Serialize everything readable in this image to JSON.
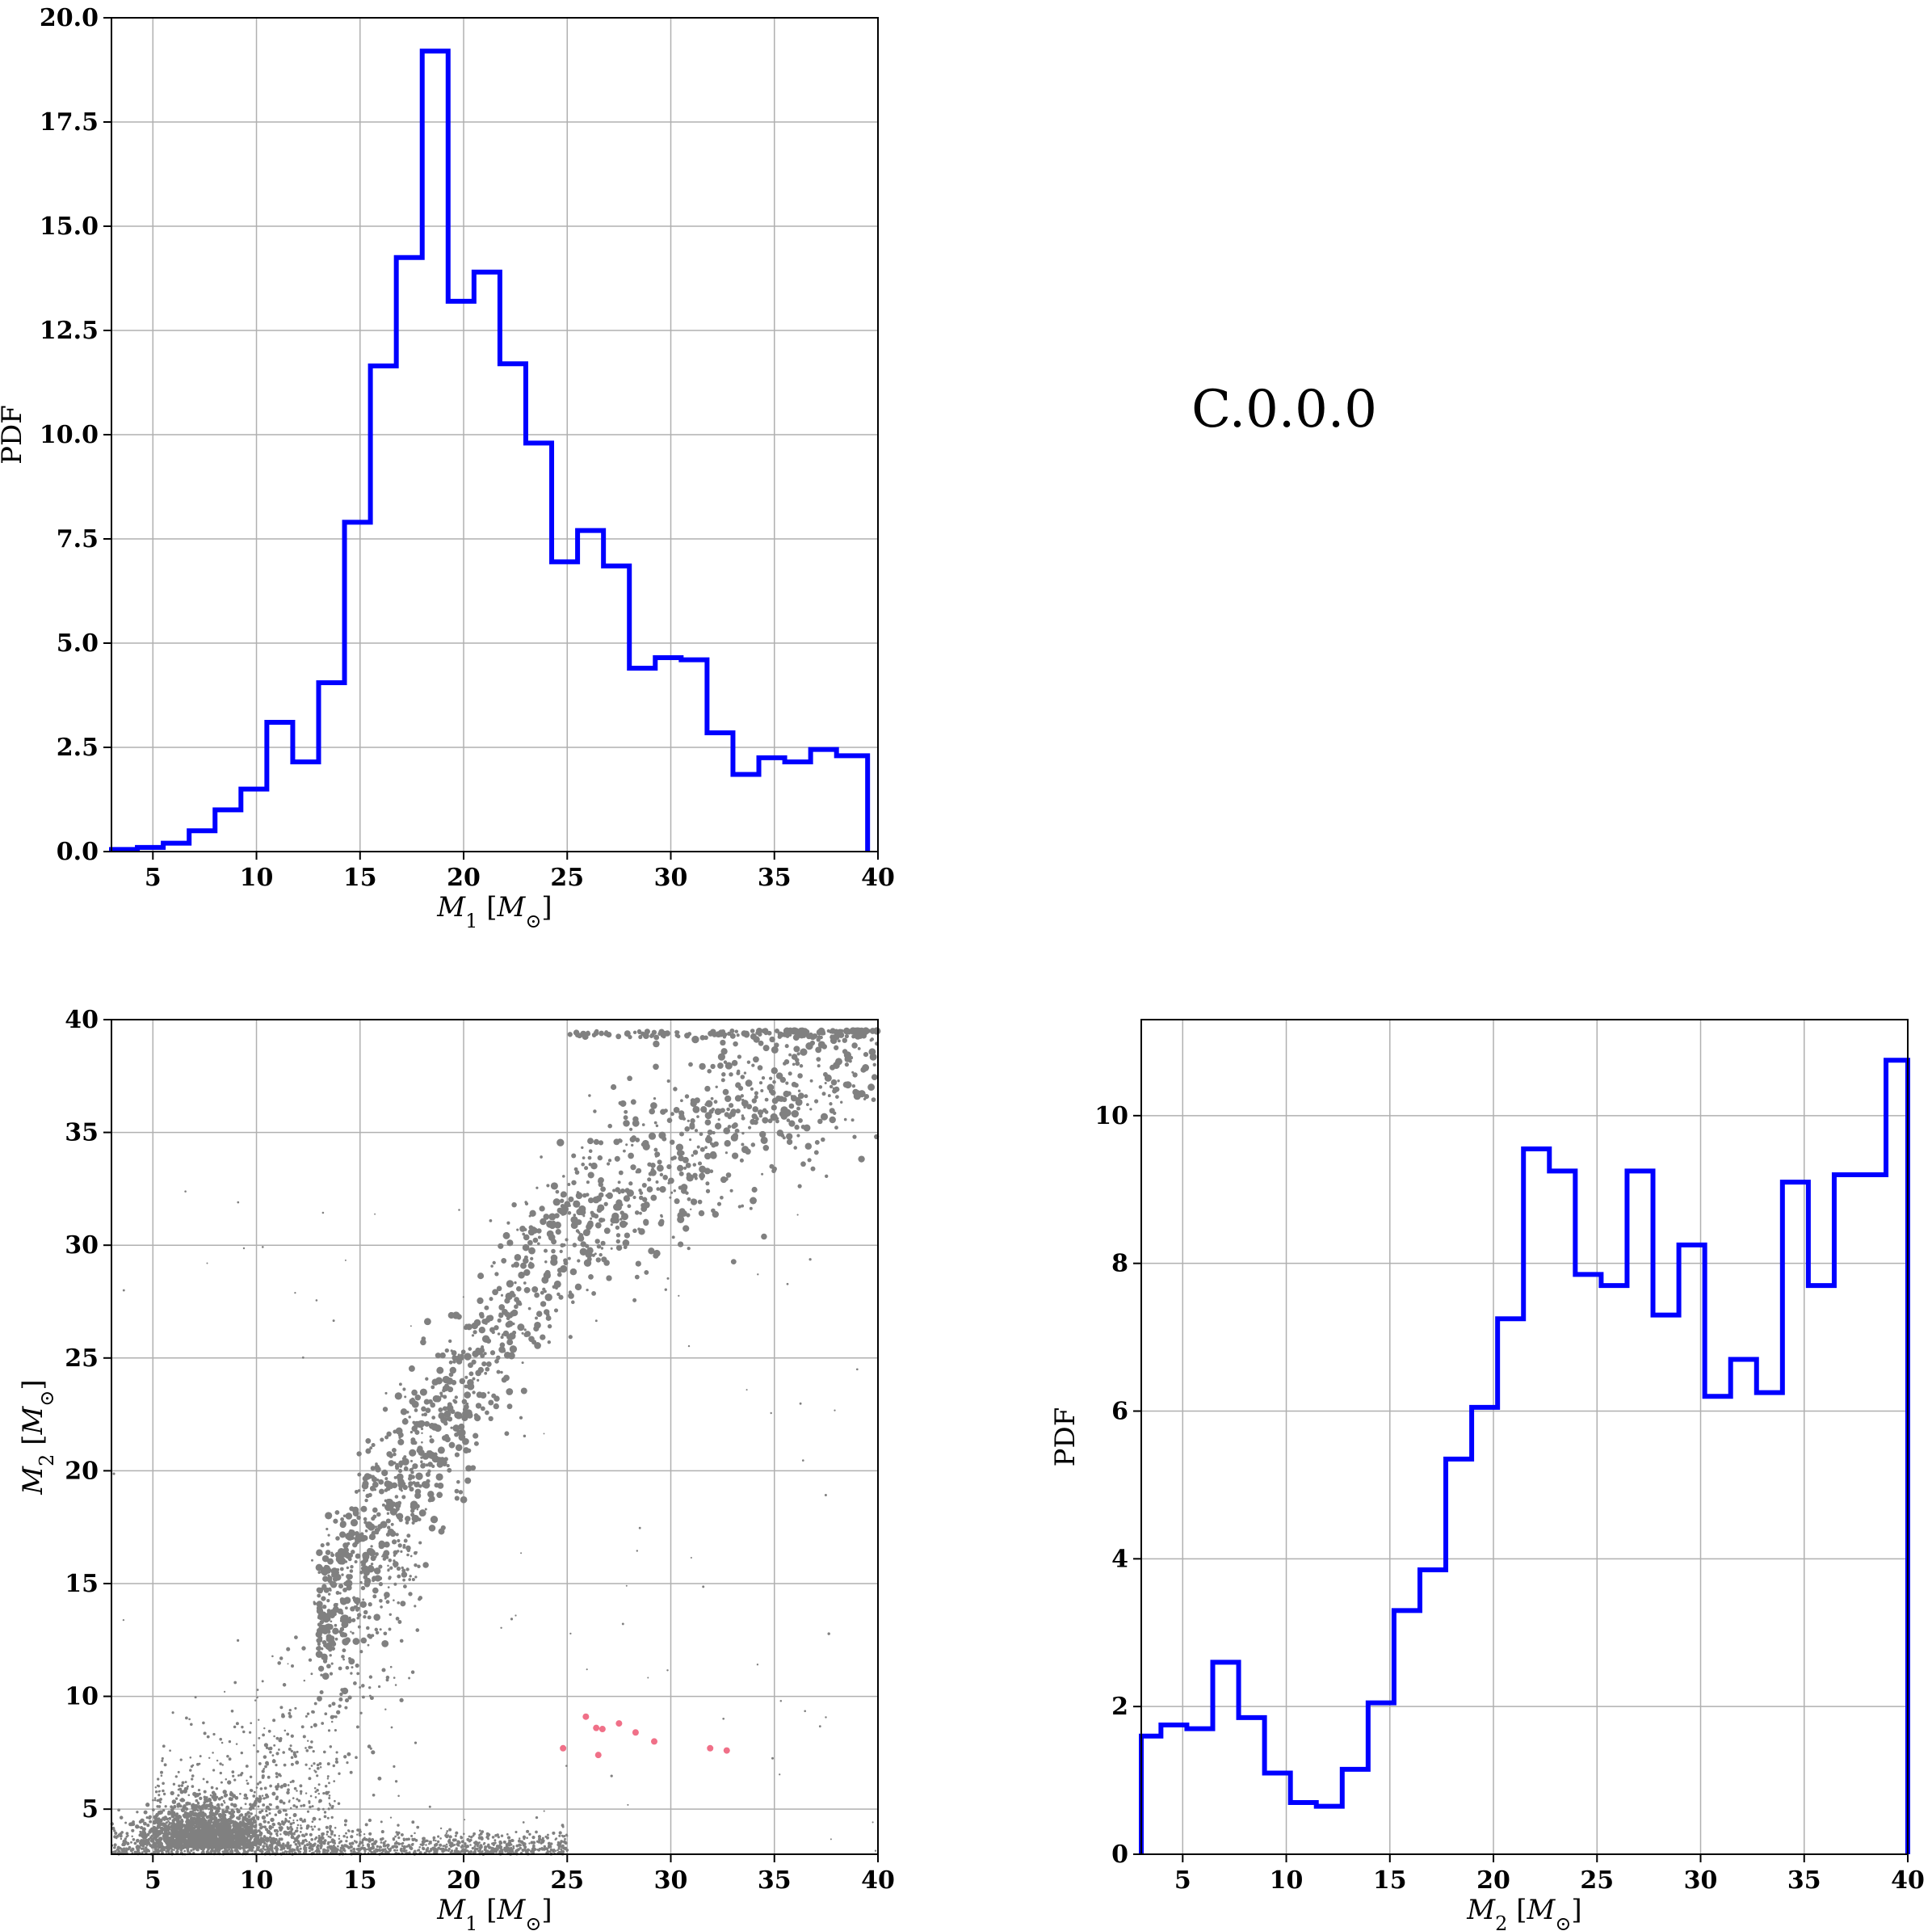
{
  "annotation": "C.0.0.0",
  "chart_data": [
    {
      "type": "histogram",
      "name": "M1 marginal",
      "xlabel": "M_1 [M_⊙]",
      "ylabel": "PDF",
      "xlim": [
        3,
        40
      ],
      "ylim": [
        0,
        20
      ],
      "xticks": [
        5,
        10,
        15,
        20,
        25,
        30,
        35,
        40
      ],
      "xtick_labels": [
        "5",
        "10",
        "15",
        "20",
        "25",
        "30",
        "35",
        "40"
      ],
      "yticks": [
        0,
        2.5,
        5,
        7.5,
        10,
        12.5,
        15,
        17.5,
        20
      ],
      "ytick_labels": [
        "0.0",
        "2.5",
        "5.0",
        "7.5",
        "10.0",
        "12.5",
        "15.0",
        "17.5",
        "20.0"
      ],
      "bin_edges": [
        3,
        4.25,
        5.5,
        6.75,
        8,
        9.25,
        10.5,
        11.75,
        13,
        14.25,
        15.5,
        16.75,
        18,
        19.25,
        20.5,
        21.75,
        23,
        24.25,
        25.5,
        26.75,
        28,
        29.25,
        30.5,
        31.75,
        33,
        34.25,
        35.5,
        36.75,
        38,
        39.5
      ],
      "values": [
        0.05,
        0.1,
        0.2,
        0.5,
        1.0,
        1.5,
        3.1,
        2.15,
        4.05,
        7.9,
        11.65,
        14.25,
        19.2,
        13.2,
        13.9,
        11.7,
        9.8,
        6.95,
        7.7,
        6.85,
        4.4,
        4.65,
        4.6,
        2.85,
        1.85,
        2.25,
        2.15,
        2.45,
        2.3
      ],
      "color": "#0000ff"
    },
    {
      "type": "scatter",
      "name": "M1 vs M2",
      "xlabel": "M_1 [M_⊙]",
      "ylabel": "M_2 [M_⊙]",
      "xlim": [
        3,
        40
      ],
      "ylim": [
        3,
        40
      ],
      "xticks": [
        5,
        10,
        15,
        20,
        25,
        30,
        35,
        40
      ],
      "xtick_labels": [
        "5",
        "10",
        "15",
        "20",
        "25",
        "30",
        "35",
        "40"
      ],
      "yticks": [
        5,
        10,
        15,
        20,
        25,
        30,
        35,
        40
      ],
      "ytick_labels": [
        "5",
        "10",
        "15",
        "20",
        "25",
        "30",
        "35",
        "40"
      ],
      "color": "#808080",
      "highlight_color": "#f07088",
      "highlight_points": [
        {
          "x": 24.8,
          "y": 7.7
        },
        {
          "x": 25.9,
          "y": 9.1
        },
        {
          "x": 26.4,
          "y": 8.6
        },
        {
          "x": 26.7,
          "y": 8.55
        },
        {
          "x": 27.5,
          "y": 8.8
        },
        {
          "x": 28.3,
          "y": 8.4
        },
        {
          "x": 29.2,
          "y": 8.0
        },
        {
          "x": 26.5,
          "y": 7.4
        },
        {
          "x": 31.9,
          "y": 7.7
        },
        {
          "x": 32.7,
          "y": 7.6
        }
      ]
    },
    {
      "type": "histogram",
      "name": "M2 marginal",
      "xlabel": "M_2 [M_⊙]",
      "ylabel": "PDF",
      "xlim": [
        3,
        40
      ],
      "ylim": [
        0,
        11.3
      ],
      "xticks": [
        5,
        10,
        15,
        20,
        25,
        30,
        35,
        40
      ],
      "xtick_labels": [
        "5",
        "10",
        "15",
        "20",
        "25",
        "30",
        "35",
        "40"
      ],
      "yticks": [
        0,
        2,
        4,
        6,
        8,
        10
      ],
      "ytick_labels": [
        "0",
        "2",
        "4",
        "6",
        "8",
        "10"
      ],
      "bin_edges": [
        3,
        3.95,
        5.2,
        6.45,
        7.7,
        8.95,
        10.2,
        11.45,
        12.7,
        13.95,
        15.2,
        16.45,
        17.7,
        18.95,
        20.2,
        21.45,
        22.7,
        23.95,
        25.2,
        26.45,
        27.7,
        28.95,
        30.2,
        31.45,
        32.7,
        33.95,
        35.2,
        36.45,
        37.7,
        38.95,
        40
      ],
      "values": [
        1.6,
        1.75,
        1.7,
        2.6,
        1.85,
        1.1,
        0.7,
        0.65,
        1.15,
        2.05,
        3.3,
        3.85,
        5.35,
        6.05,
        7.25,
        9.55,
        9.25,
        7.85,
        7.7,
        9.25,
        7.3,
        8.25,
        6.2,
        6.7,
        6.25,
        9.1,
        7.7,
        9.2,
        9.2,
        10.75
      ],
      "color": "#0000ff"
    }
  ]
}
